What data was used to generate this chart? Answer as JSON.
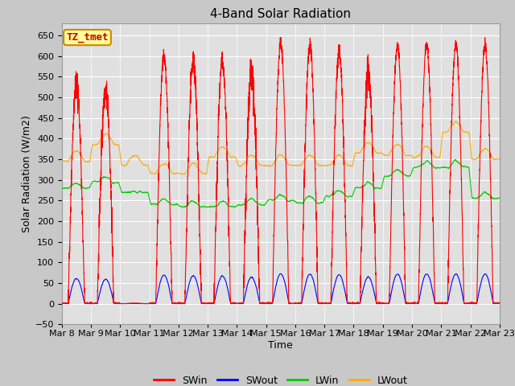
{
  "title": "4-Band Solar Radiation",
  "xlabel": "Time",
  "ylabel": "Solar Radiation (W/m2)",
  "ylim": [
    -50,
    680
  ],
  "yticks": [
    -50,
    0,
    50,
    100,
    150,
    200,
    250,
    300,
    350,
    400,
    450,
    500,
    550,
    600,
    650
  ],
  "background_color": "#c8c8c8",
  "plot_bg_color": "#e0e0e0",
  "grid_color": "#ffffff",
  "title_fontsize": 11,
  "label_fontsize": 9,
  "tick_fontsize": 8,
  "legend_colors": [
    "#ff0000",
    "#0000ff",
    "#00cc00",
    "#ffaa00"
  ],
  "legend_labels": [
    "SWin",
    "SWout",
    "LWin",
    "LWout"
  ],
  "annotation_text": "TZ_tmet",
  "annotation_bg": "#ffff99",
  "annotation_border": "#cc8800",
  "annotation_text_color": "#cc0000",
  "n_points": 3600
}
